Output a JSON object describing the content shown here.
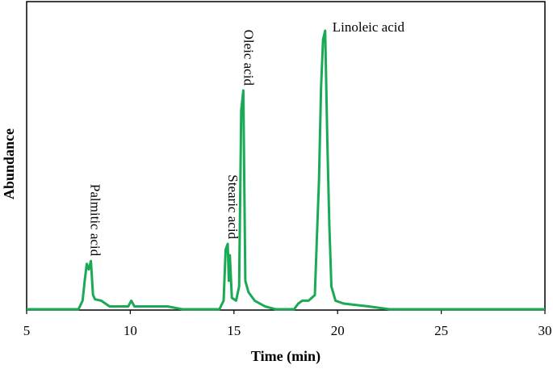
{
  "chart_data": {
    "type": "line",
    "xlabel": "Time (min)",
    "ylabel": "Abundance",
    "xlim": [
      5,
      30
    ],
    "ylim": [
      0,
      100
    ],
    "xticks": [
      "5",
      "10",
      "15",
      "20",
      "25",
      "30"
    ],
    "grid": false,
    "legend": "none",
    "line_color": "#1aaa55",
    "series": [
      {
        "values": [
          [
            5.0,
            0
          ],
          [
            7.5,
            0
          ],
          [
            7.7,
            3
          ],
          [
            7.8,
            10
          ],
          [
            7.9,
            16
          ],
          [
            8.0,
            14
          ],
          [
            8.1,
            17
          ],
          [
            8.2,
            5
          ],
          [
            8.3,
            3.5
          ],
          [
            8.6,
            3
          ],
          [
            9.0,
            1
          ],
          [
            9.9,
            1
          ],
          [
            10.05,
            3
          ],
          [
            10.2,
            1
          ],
          [
            11.8,
            1
          ],
          [
            12.5,
            0
          ],
          [
            14.3,
            0
          ],
          [
            14.5,
            3
          ],
          [
            14.6,
            21
          ],
          [
            14.7,
            23
          ],
          [
            14.75,
            10
          ],
          [
            14.8,
            19
          ],
          [
            14.9,
            4
          ],
          [
            15.1,
            3
          ],
          [
            15.25,
            8
          ],
          [
            15.35,
            70
          ],
          [
            15.45,
            77
          ],
          [
            15.55,
            10
          ],
          [
            15.7,
            6
          ],
          [
            16.0,
            3
          ],
          [
            16.5,
            1
          ],
          [
            17.0,
            0
          ],
          [
            17.9,
            0
          ],
          [
            18.1,
            2
          ],
          [
            18.3,
            3
          ],
          [
            18.6,
            3
          ],
          [
            18.9,
            5
          ],
          [
            19.0,
            25
          ],
          [
            19.1,
            45
          ],
          [
            19.2,
            78
          ],
          [
            19.3,
            95
          ],
          [
            19.4,
            98
          ],
          [
            19.5,
            60
          ],
          [
            19.6,
            30
          ],
          [
            19.7,
            8
          ],
          [
            19.9,
            3
          ],
          [
            20.3,
            2
          ],
          [
            21.5,
            1
          ],
          [
            22.5,
            0
          ],
          [
            30.0,
            0
          ]
        ]
      }
    ],
    "annotations": [
      {
        "text": "Palmitic acid",
        "x": 8.05,
        "y": 17
      },
      {
        "text": "Stearic acid",
        "x": 14.7,
        "y": 23
      },
      {
        "text": "Oleic acid",
        "x": 15.45,
        "y": 77
      },
      {
        "text": "Linoleic acid",
        "x": 19.4,
        "y": 98
      }
    ]
  }
}
